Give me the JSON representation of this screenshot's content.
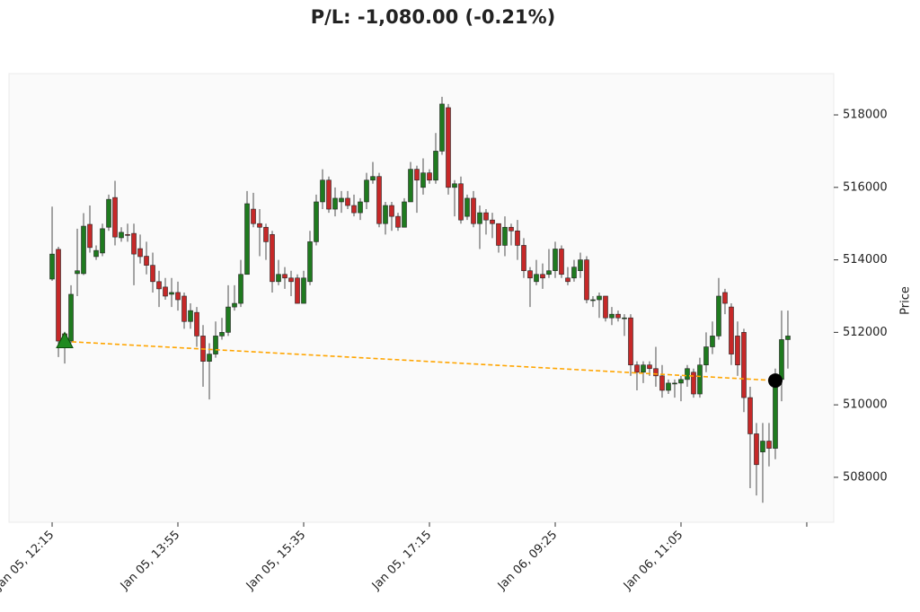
{
  "chart_data": {
    "type": "candlestick",
    "title": "P/L: -1,080.00 (-0.21%)",
    "y_label": "Price",
    "up_color": "#1f7a1f",
    "down_color": "#c62828",
    "xlim": [
      -6.86,
      124.29
    ],
    "ylim": [
      506760,
      519140
    ],
    "yticks": [
      508000,
      510000,
      512000,
      514000,
      516000,
      518000
    ],
    "xticks": [
      {
        "value": 0,
        "label": "Jan 05, 12:15"
      },
      {
        "value": 20,
        "label": "Jan 05, 13:55"
      },
      {
        "value": 40,
        "label": "Jan 05, 15:35"
      },
      {
        "value": 60,
        "label": "Jan 05, 17:15"
      },
      {
        "value": 80,
        "label": "Jan 06, 09:25"
      },
      {
        "value": 100,
        "label": "Jan 06, 11:05"
      },
      {
        "value": 120,
        "label": null
      }
    ],
    "open": [
      513470,
      514290,
      511960,
      511760,
      513620,
      513620,
      514980,
      514090,
      514190,
      514900,
      515720,
      514610,
      514700,
      514730,
      514310,
      514100,
      513850,
      513400,
      513250,
      513050,
      513100,
      513000,
      512300,
      512550,
      511900,
      511200,
      511400,
      511900,
      512000,
      512700,
      512800,
      513600,
      515400,
      515000,
      514900,
      514700,
      513400,
      513600,
      513500,
      513500,
      512800,
      513400,
      514500,
      515600,
      516200,
      515400,
      515600,
      515700,
      515500,
      515300,
      515600,
      516200,
      516300,
      515000,
      515500,
      515200,
      514900,
      515600,
      516500,
      516000,
      516400,
      516200,
      517000,
      518200,
      516000,
      516100,
      515200,
      515700,
      515000,
      515300,
      515100,
      515000,
      514400,
      514900,
      514800,
      514400,
      513700,
      513400,
      513600,
      513600,
      513700,
      514300,
      513500,
      513500,
      513700,
      514000,
      512900,
      512900,
      513000,
      512400,
      512500,
      512400,
      512400,
      511100,
      510900,
      511100,
      511000,
      510800,
      510400,
      510600,
      510600,
      510700,
      510900,
      510300,
      511100,
      511600,
      511900,
      513100,
      512700,
      511900,
      512000,
      510200,
      509200,
      508700,
      509000,
      508800,
      510700,
      511800
    ],
    "high": [
      515470,
      514360,
      512000,
      513300,
      514860,
      515290,
      515500,
      514400,
      515000,
      515800,
      516180,
      514900,
      515000,
      515000,
      514700,
      514500,
      514200,
      513700,
      513500,
      513500,
      513400,
      513100,
      512800,
      512700,
      512200,
      511700,
      512300,
      512400,
      513300,
      513300,
      514000,
      515900,
      515850,
      515400,
      515000,
      514800,
      514000,
      513800,
      513700,
      513600,
      513700,
      514800,
      515800,
      516500,
      516300,
      516000,
      515900,
      515900,
      515800,
      515700,
      516400,
      516700,
      516400,
      515600,
      515600,
      515300,
      515700,
      516700,
      516600,
      516800,
      516500,
      517500,
      518500,
      518300,
      516200,
      516300,
      515800,
      515900,
      515500,
      515400,
      515300,
      515000,
      515200,
      515000,
      515100,
      514600,
      513800,
      514000,
      513900,
      514300,
      514500,
      514400,
      513800,
      514000,
      514200,
      514100,
      513000,
      513100,
      513000,
      512700,
      512600,
      512500,
      512500,
      511200,
      511200,
      511200,
      511600,
      511100,
      510700,
      510700,
      510800,
      511100,
      511000,
      511300,
      512000,
      512300,
      513500,
      513200,
      512800,
      512300,
      512100,
      510500,
      509500,
      509500,
      509500,
      511000,
      512600,
      512600
    ],
    "low": [
      513420,
      511320,
      511140,
      511700,
      513000,
      513580,
      514200,
      514000,
      514100,
      514800,
      514400,
      514500,
      514500,
      513300,
      513900,
      513600,
      513100,
      512700,
      512900,
      512700,
      512600,
      512100,
      512100,
      511600,
      510500,
      510150,
      511300,
      511800,
      511900,
      512600,
      512700,
      513600,
      514900,
      514100,
      514000,
      513100,
      513300,
      513200,
      513000,
      512800,
      512800,
      513300,
      514400,
      515400,
      515300,
      515200,
      515300,
      515400,
      515200,
      515100,
      515400,
      516100,
      514900,
      514700,
      514800,
      514800,
      514900,
      515600,
      515300,
      515800,
      516100,
      516100,
      516900,
      515800,
      515200,
      515000,
      515100,
      514900,
      514300,
      514700,
      514600,
      514200,
      514100,
      514400,
      514000,
      513500,
      512700,
      513300,
      513200,
      513500,
      513500,
      513500,
      513300,
      513400,
      513500,
      512800,
      512700,
      512400,
      512300,
      512200,
      512300,
      511900,
      510800,
      510400,
      510600,
      510800,
      510500,
      510200,
      510300,
      510200,
      510100,
      510500,
      510200,
      510200,
      510900,
      511400,
      511800,
      512500,
      511100,
      510800,
      509800,
      507700,
      507500,
      507300,
      508300,
      508500,
      510100,
      511000
    ],
    "close": [
      514160,
      511760,
      511640,
      513050,
      513700,
      514930,
      514340,
      514260,
      514860,
      515670,
      514630,
      514760,
      514680,
      514160,
      514090,
      513850,
      513400,
      513200,
      513000,
      513100,
      512900,
      512300,
      512600,
      511900,
      511200,
      511400,
      511900,
      512000,
      512700,
      512800,
      513600,
      515550,
      515000,
      514900,
      514500,
      513400,
      513600,
      513500,
      513400,
      512800,
      513500,
      514500,
      515600,
      516200,
      515400,
      515700,
      515700,
      515500,
      515300,
      515600,
      516200,
      516300,
      515000,
      515500,
      515200,
      514900,
      515600,
      516500,
      516200,
      516400,
      516200,
      517000,
      518300,
      516000,
      516100,
      515100,
      515700,
      515000,
      515300,
      515100,
      515000,
      514400,
      514900,
      514800,
      514400,
      513700,
      513500,
      513600,
      513500,
      513700,
      514300,
      513600,
      513400,
      513800,
      514000,
      512900,
      512900,
      513000,
      512400,
      512500,
      512400,
      512400,
      511100,
      510900,
      511100,
      511000,
      510800,
      510400,
      510600,
      510600,
      510700,
      511000,
      510300,
      511100,
      511600,
      511900,
      513000,
      512800,
      511400,
      511100,
      510200,
      509200,
      508350,
      509000,
      508800,
      510700,
      511800,
      511900
    ],
    "trade": {
      "entry_index": 2,
      "entry_price": 511750,
      "exit_index": 115,
      "exit_price": 510670,
      "entry_color": "#1f8a1f",
      "exit_color": "#000000",
      "line_color": "#ffa500"
    }
  }
}
